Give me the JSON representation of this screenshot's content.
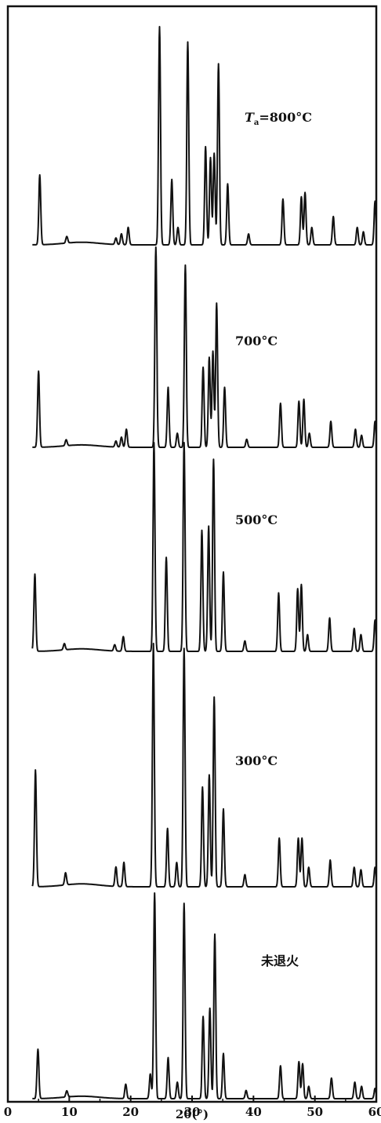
{
  "chart_data": {
    "type": "line",
    "title": "",
    "xlabel": "2θ(°)",
    "ylabel": "",
    "xlim": [
      0,
      60
    ],
    "x_ticks": [
      0,
      10,
      20,
      30,
      40,
      50,
      60
    ],
    "grid": false,
    "series": [
      {
        "name": "Ta=800°C",
        "label_main": "T",
        "label_sub": "a",
        "label_rest": "=800°C",
        "peaks": [
          {
            "x": 5.2,
            "h": 0.32
          },
          {
            "x": 9.6,
            "h": 0.03
          },
          {
            "x": 17.6,
            "h": 0.03
          },
          {
            "x": 18.5,
            "h": 0.05
          },
          {
            "x": 19.6,
            "h": 0.08
          },
          {
            "x": 24.7,
            "h": 1.0
          },
          {
            "x": 26.7,
            "h": 0.3
          },
          {
            "x": 27.7,
            "h": 0.08
          },
          {
            "x": 29.3,
            "h": 0.93
          },
          {
            "x": 32.2,
            "h": 0.45
          },
          {
            "x": 33.0,
            "h": 0.4
          },
          {
            "x": 33.6,
            "h": 0.42
          },
          {
            "x": 34.3,
            "h": 0.83
          },
          {
            "x": 35.8,
            "h": 0.28
          },
          {
            "x": 39.2,
            "h": 0.05
          },
          {
            "x": 44.8,
            "h": 0.21
          },
          {
            "x": 47.8,
            "h": 0.22
          },
          {
            "x": 48.4,
            "h": 0.24
          },
          {
            "x": 49.5,
            "h": 0.08
          },
          {
            "x": 53.0,
            "h": 0.13
          },
          {
            "x": 56.9,
            "h": 0.08
          },
          {
            "x": 57.9,
            "h": 0.06
          },
          {
            "x": 59.8,
            "h": 0.2
          }
        ]
      },
      {
        "name": "700°C",
        "label_main": "700°C",
        "peaks": [
          {
            "x": 5.0,
            "h": 0.38
          },
          {
            "x": 9.5,
            "h": 0.03
          },
          {
            "x": 17.6,
            "h": 0.03
          },
          {
            "x": 18.5,
            "h": 0.05
          },
          {
            "x": 19.3,
            "h": 0.09
          },
          {
            "x": 24.1,
            "h": 1.0
          },
          {
            "x": 26.1,
            "h": 0.3
          },
          {
            "x": 27.6,
            "h": 0.07
          },
          {
            "x": 28.9,
            "h": 0.91
          },
          {
            "x": 31.8,
            "h": 0.4
          },
          {
            "x": 32.8,
            "h": 0.45
          },
          {
            "x": 33.4,
            "h": 0.48
          },
          {
            "x": 34.0,
            "h": 0.72
          },
          {
            "x": 35.3,
            "h": 0.3
          },
          {
            "x": 38.9,
            "h": 0.04
          },
          {
            "x": 44.4,
            "h": 0.22
          },
          {
            "x": 47.4,
            "h": 0.23
          },
          {
            "x": 48.2,
            "h": 0.24
          },
          {
            "x": 49.1,
            "h": 0.07
          },
          {
            "x": 52.6,
            "h": 0.13
          },
          {
            "x": 56.6,
            "h": 0.09
          },
          {
            "x": 57.6,
            "h": 0.06
          },
          {
            "x": 59.8,
            "h": 0.13
          }
        ]
      },
      {
        "name": "500°C",
        "label_main": "500°C",
        "peaks": [
          {
            "x": 4.4,
            "h": 0.37
          },
          {
            "x": 9.2,
            "h": 0.03
          },
          {
            "x": 17.4,
            "h": 0.03
          },
          {
            "x": 18.8,
            "h": 0.07
          },
          {
            "x": 23.8,
            "h": 1.0
          },
          {
            "x": 25.8,
            "h": 0.45
          },
          {
            "x": 28.7,
            "h": 1.0
          },
          {
            "x": 31.6,
            "h": 0.58
          },
          {
            "x": 32.7,
            "h": 0.6
          },
          {
            "x": 33.5,
            "h": 0.92
          },
          {
            "x": 35.1,
            "h": 0.38
          },
          {
            "x": 38.6,
            "h": 0.05
          },
          {
            "x": 44.1,
            "h": 0.28
          },
          {
            "x": 47.2,
            "h": 0.3
          },
          {
            "x": 47.8,
            "h": 0.32
          },
          {
            "x": 48.8,
            "h": 0.08
          },
          {
            "x": 52.4,
            "h": 0.16
          },
          {
            "x": 56.4,
            "h": 0.11
          },
          {
            "x": 57.5,
            "h": 0.08
          },
          {
            "x": 59.8,
            "h": 0.15
          }
        ]
      },
      {
        "name": "300°C",
        "label_main": "300°C",
        "peaks": [
          {
            "x": 4.5,
            "h": 0.48
          },
          {
            "x": 9.4,
            "h": 0.05
          },
          {
            "x": 17.6,
            "h": 0.08
          },
          {
            "x": 18.9,
            "h": 0.1
          },
          {
            "x": 23.7,
            "h": 1.0
          },
          {
            "x": 26.0,
            "h": 0.24
          },
          {
            "x": 27.5,
            "h": 0.1
          },
          {
            "x": 28.7,
            "h": 0.98
          },
          {
            "x": 31.7,
            "h": 0.41
          },
          {
            "x": 32.8,
            "h": 0.46
          },
          {
            "x": 33.6,
            "h": 0.78
          },
          {
            "x": 35.1,
            "h": 0.32
          },
          {
            "x": 38.6,
            "h": 0.05
          },
          {
            "x": 44.2,
            "h": 0.2
          },
          {
            "x": 47.3,
            "h": 0.2
          },
          {
            "x": 47.9,
            "h": 0.2
          },
          {
            "x": 49.0,
            "h": 0.08
          },
          {
            "x": 52.5,
            "h": 0.11
          },
          {
            "x": 56.4,
            "h": 0.08
          },
          {
            "x": 57.5,
            "h": 0.07
          },
          {
            "x": 59.8,
            "h": 0.08
          }
        ]
      },
      {
        "name": "未退火",
        "label_main": "未退火",
        "peaks": [
          {
            "x": 4.9,
            "h": 0.24
          },
          {
            "x": 9.6,
            "h": 0.03
          },
          {
            "x": 19.2,
            "h": 0.07
          },
          {
            "x": 23.2,
            "h": 0.12
          },
          {
            "x": 23.9,
            "h": 1.0
          },
          {
            "x": 26.1,
            "h": 0.2
          },
          {
            "x": 27.6,
            "h": 0.08
          },
          {
            "x": 28.7,
            "h": 0.95
          },
          {
            "x": 31.8,
            "h": 0.4
          },
          {
            "x": 32.9,
            "h": 0.44
          },
          {
            "x": 33.7,
            "h": 0.8
          },
          {
            "x": 35.1,
            "h": 0.22
          },
          {
            "x": 38.8,
            "h": 0.04
          },
          {
            "x": 44.4,
            "h": 0.16
          },
          {
            "x": 47.4,
            "h": 0.18
          },
          {
            "x": 48.0,
            "h": 0.17
          },
          {
            "x": 49.0,
            "h": 0.06
          },
          {
            "x": 52.7,
            "h": 0.1
          },
          {
            "x": 56.5,
            "h": 0.08
          },
          {
            "x": 57.6,
            "h": 0.06
          },
          {
            "x": 59.8,
            "h": 0.05
          }
        ]
      }
    ]
  }
}
